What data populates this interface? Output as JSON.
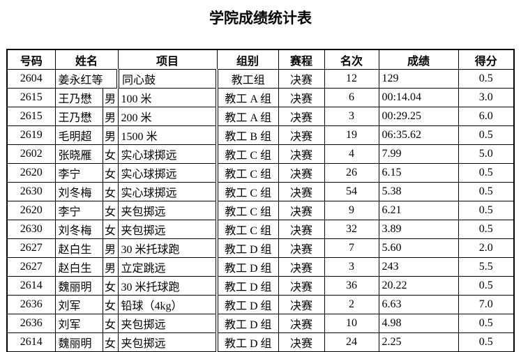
{
  "page": {
    "title": "学院成绩统计表"
  },
  "colors": {
    "background": "#ffffff",
    "text": "#000000",
    "border": "#000000"
  },
  "table": {
    "headers": [
      "号码",
      "姓名",
      "项目",
      "组别",
      "赛程",
      "名次",
      "成绩",
      "得分"
    ],
    "rows": [
      {
        "number": "2604",
        "name": "姜永红等",
        "gender": "",
        "merged": true,
        "event": "同心鼓",
        "group": "教工组",
        "stage": "决赛",
        "rank": "12",
        "result": "129",
        "points": "0.5"
      },
      {
        "number": "2615",
        "name": "王乃懋",
        "gender": "男",
        "event": "100 米",
        "group": "教工 A 组",
        "stage": "决赛",
        "rank": "6",
        "result": "00:14.04",
        "points": "3.0"
      },
      {
        "number": "2615",
        "name": "王乃懋",
        "gender": "男",
        "event": "200 米",
        "group": "教工 A 组",
        "stage": "决赛",
        "rank": "3",
        "result": "00:29.25",
        "points": "6.0"
      },
      {
        "number": "2619",
        "name": "毛明超",
        "gender": "男",
        "event": "1500 米",
        "group": "教工 B 组",
        "stage": "决赛",
        "rank": "19",
        "result": "06:35.62",
        "points": "0.5"
      },
      {
        "number": "2602",
        "name": "张晓雁",
        "gender": "女",
        "event": "实心球掷远",
        "group": "教工 C 组",
        "stage": "决赛",
        "rank": "4",
        "result": "7.99",
        "points": "5.0"
      },
      {
        "number": "2620",
        "name": "李宁",
        "gender": "女",
        "event": "实心球掷远",
        "group": "教工 C 组",
        "stage": "决赛",
        "rank": "26",
        "result": "6.15",
        "points": "0.5"
      },
      {
        "number": "2630",
        "name": "刘冬梅",
        "gender": "女",
        "event": "实心球掷远",
        "group": "教工 C 组",
        "stage": "决赛",
        "rank": "54",
        "result": "5.38",
        "points": "0.5"
      },
      {
        "number": "2620",
        "name": "李宁",
        "gender": "女",
        "event": "夹包掷远",
        "group": "教工 C 组",
        "stage": "决赛",
        "rank": "9",
        "result": "6.21",
        "points": "0.5"
      },
      {
        "number": "2630",
        "name": "刘冬梅",
        "gender": "女",
        "event": "夹包掷远",
        "group": "教工 C 组",
        "stage": "决赛",
        "rank": "32",
        "result": "3.89",
        "points": "0.5"
      },
      {
        "number": "2627",
        "name": "赵白生",
        "gender": "男",
        "event": "30 米托球跑",
        "group": "教工 D 组",
        "stage": "决赛",
        "rank": "7",
        "result": "5.60",
        "points": "2.0"
      },
      {
        "number": "2627",
        "name": "赵白生",
        "gender": "男",
        "event": "立定跳远",
        "group": "教工 D 组",
        "stage": "决赛",
        "rank": "3",
        "result": "243",
        "points": "5.5"
      },
      {
        "number": "2614",
        "name": "魏丽明",
        "gender": "女",
        "event": "30 米托球跑",
        "group": "教工 D 组",
        "stage": "决赛",
        "rank": "36",
        "result": "20.22",
        "points": "0.5"
      },
      {
        "number": "2636",
        "name": "刘军",
        "gender": "女",
        "event": "铅球（4kg）",
        "group": "教工 D 组",
        "stage": "决赛",
        "rank": "2",
        "result": "6.63",
        "points": "7.0"
      },
      {
        "number": "2636",
        "name": "刘军",
        "gender": "女",
        "event": "夹包掷远",
        "group": "教工 D 组",
        "stage": "决赛",
        "rank": "10",
        "result": "4.98",
        "points": "0.5"
      },
      {
        "number": "2614",
        "name": "魏丽明",
        "gender": "女",
        "event": "夹包掷远",
        "group": "教工 D 组",
        "stage": "决赛",
        "rank": "24",
        "result": "2.25",
        "points": "0.5"
      }
    ]
  }
}
